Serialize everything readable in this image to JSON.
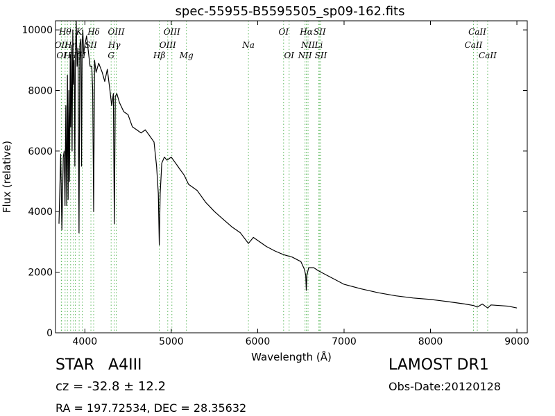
{
  "chart_data": {
    "type": "line",
    "title": "spec-55955-B5595505_sp09-162.fits",
    "xlabel": "Wavelength (Å)",
    "ylabel": "Flux (relative)",
    "xlim": [
      3660,
      9120
    ],
    "ylim": [
      0,
      10300
    ],
    "xticks": [
      4000,
      5000,
      6000,
      7000,
      8000,
      9000
    ],
    "yticks": [
      0,
      2000,
      4000,
      6000,
      8000,
      10000
    ],
    "grid": false,
    "series": [
      {
        "color": "#000000",
        "x": [
          3700,
          3720,
          3734,
          3750,
          3760,
          3770,
          3780,
          3790,
          3798,
          3806,
          3814,
          3822,
          3830,
          3836,
          3842,
          3852,
          3860,
          3868,
          3876,
          3884,
          3890,
          3900,
          3910,
          3920,
          3932,
          3942,
          3954,
          3962,
          3968,
          3976,
          3986,
          4000,
          4020,
          4040,
          4060,
          4080,
          4090,
          4102,
          4112,
          4130,
          4160,
          4200,
          4230,
          4260,
          4290,
          4310,
          4330,
          4341,
          4352,
          4370,
          4400,
          4450,
          4500,
          4550,
          4600,
          4650,
          4700,
          4750,
          4800,
          4830,
          4850,
          4861,
          4872,
          4890,
          4920,
          4950,
          5000,
          5050,
          5100,
          5150,
          5200,
          5250,
          5300,
          5400,
          5500,
          5600,
          5700,
          5800,
          5893,
          5950,
          6000,
          6100,
          6200,
          6300,
          6400,
          6500,
          6540,
          6556,
          6563,
          6570,
          6590,
          6650,
          6700,
          6800,
          6900,
          7000,
          7200,
          7400,
          7600,
          7800,
          8000,
          8200,
          8400,
          8500,
          8542,
          8600,
          8662,
          8700,
          8800,
          8900,
          9000
        ],
        "y": [
          3600,
          5900,
          3400,
          5800,
          6000,
          4200,
          7500,
          4200,
          8500,
          4400,
          8000,
          5000,
          9200,
          6800,
          9500,
          6000,
          10000,
          8200,
          9000,
          5500,
          9000,
          10300,
          8800,
          9400,
          3300,
          9500,
          9700,
          5500,
          9500,
          10000,
          9200,
          9500,
          9800,
          9300,
          8800,
          8800,
          8000,
          4000,
          9000,
          8600,
          8900,
          8600,
          8300,
          8700,
          8000,
          7500,
          7900,
          3600,
          7800,
          7900,
          7600,
          7300,
          7200,
          6800,
          6700,
          6600,
          6700,
          6500,
          6300,
          5500,
          4600,
          2900,
          4600,
          5600,
          5800,
          5700,
          5800,
          5600,
          5400,
          5200,
          4900,
          4800,
          4700,
          4300,
          4000,
          3750,
          3500,
          3300,
          2950,
          3150,
          3050,
          2850,
          2700,
          2580,
          2500,
          2350,
          2100,
          1900,
          1400,
          1900,
          2150,
          2150,
          2050,
          1900,
          1750,
          1600,
          1450,
          1320,
          1220,
          1150,
          1100,
          1030,
          950,
          900,
          850,
          950,
          820,
          920,
          900,
          880,
          820
        ]
      }
    ],
    "line_markers": [
      {
        "x": 3727,
        "label": "OII",
        "row": 2
      },
      {
        "x": 3730,
        "label": "OI",
        "row": 3
      },
      {
        "x": 3771,
        "label": "Hθ",
        "row": 1
      },
      {
        "x": 3798,
        "label": "H",
        "row": 3
      },
      {
        "x": 3835,
        "label": "Hη",
        "row": 2
      },
      {
        "x": 3869,
        "label": "",
        "row": 0
      },
      {
        "x": 3889,
        "label": "Hζ",
        "row": 3
      },
      {
        "x": 3934,
        "label": "K",
        "row": 1
      },
      {
        "x": 3969,
        "label": "H",
        "row": 3
      },
      {
        "x": 4070,
        "label": "SII",
        "row": 2
      },
      {
        "x": 4102,
        "label": "Hδ",
        "row": 1
      },
      {
        "x": 4304,
        "label": "G",
        "row": 3
      },
      {
        "x": 4340,
        "label": "Hγ",
        "row": 2
      },
      {
        "x": 4363,
        "label": "OIII",
        "row": 1
      },
      {
        "x": 4861,
        "label": "Hβ",
        "row": 3
      },
      {
        "x": 4959,
        "label": "OIII",
        "row": 2
      },
      {
        "x": 5007,
        "label": "OIII",
        "row": 1
      },
      {
        "x": 5175,
        "label": "Mg",
        "row": 3
      },
      {
        "x": 5893,
        "label": "Na",
        "row": 2
      },
      {
        "x": 6300,
        "label": "OI",
        "row": 1
      },
      {
        "x": 6364,
        "label": "OI",
        "row": 3
      },
      {
        "x": 6548,
        "label": "NII",
        "row": 3
      },
      {
        "x": 6563,
        "label": "Hα",
        "row": 1
      },
      {
        "x": 6583,
        "label": "NII",
        "row": 2
      },
      {
        "x": 6707,
        "label": "Li",
        "row": 2
      },
      {
        "x": 6717,
        "label": "SII",
        "row": 1
      },
      {
        "x": 6731,
        "label": "SII",
        "row": 3
      },
      {
        "x": 8498,
        "label": "CaII",
        "row": 2
      },
      {
        "x": 8542,
        "label": "CaII",
        "row": 1
      },
      {
        "x": 8662,
        "label": "CaII",
        "row": 3
      }
    ]
  },
  "info": {
    "object_class": "STAR",
    "subclass": "A4III",
    "redshift": "cz = -32.8 ± 12.2",
    "coordinates": "RA = 197.72534, DEC = 28.35632",
    "survey": "LAMOST DR1",
    "obs_date": "Obs-Date:20120128"
  }
}
